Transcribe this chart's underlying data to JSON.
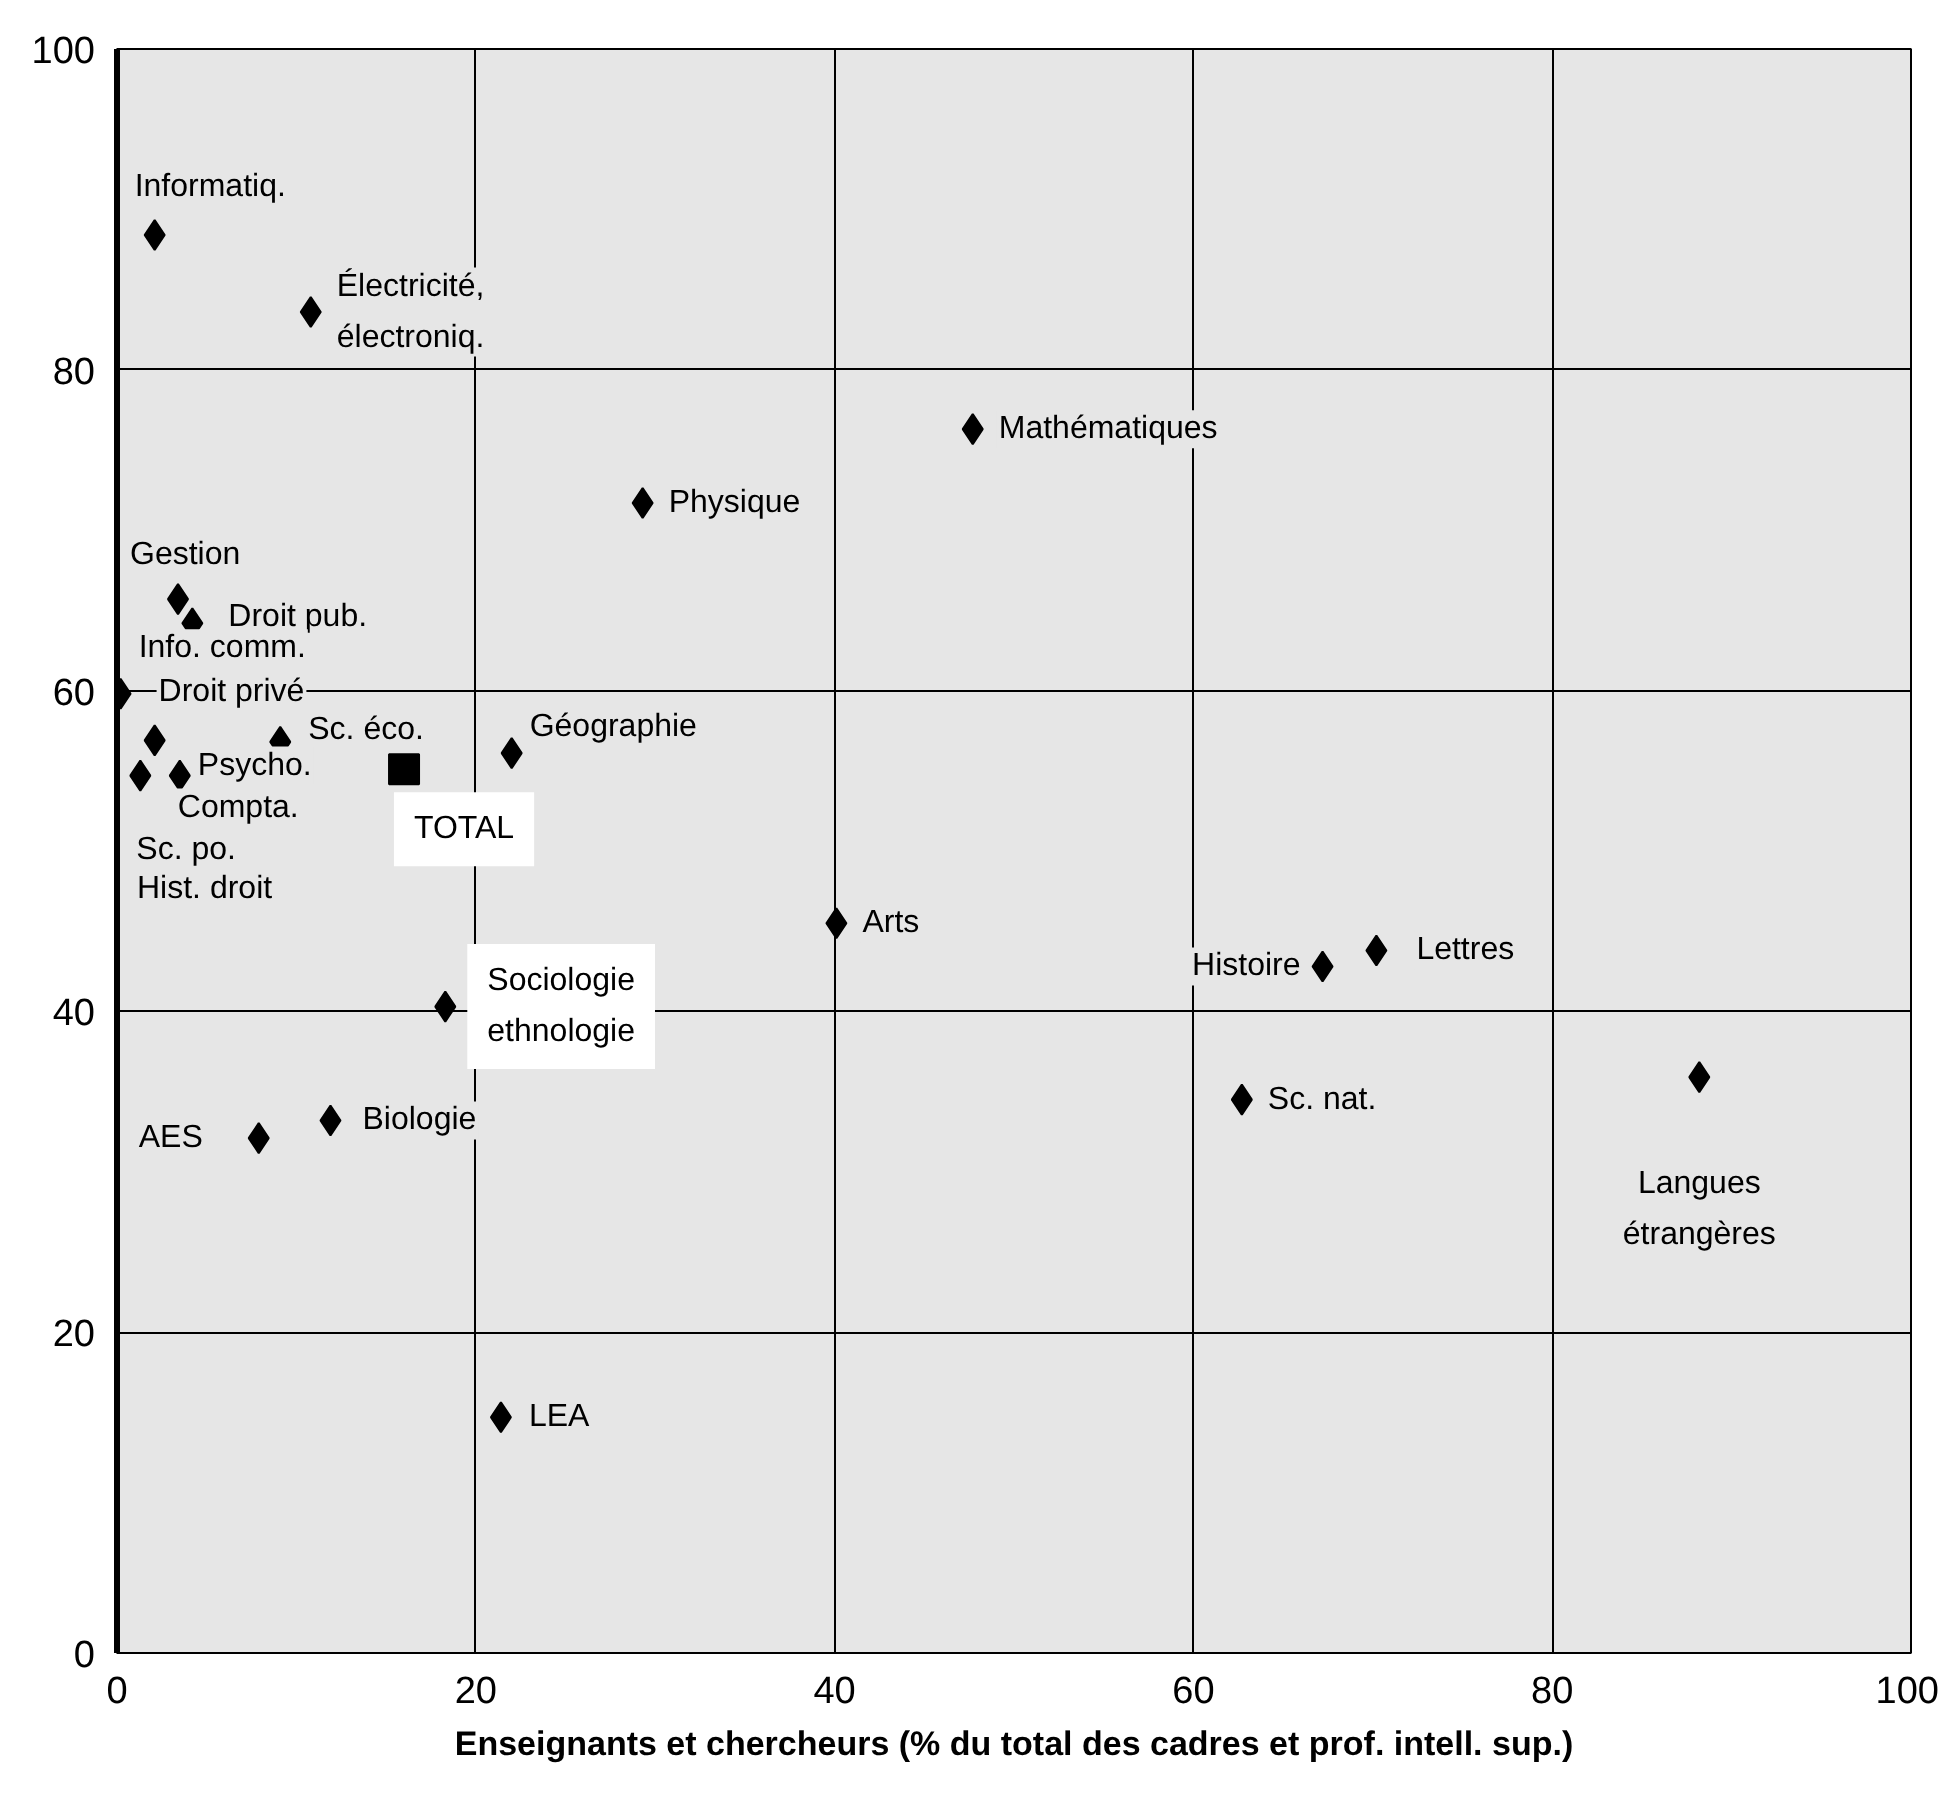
{
  "chart_data": {
    "type": "scatter",
    "xlabel": "Enseignants et chercheurs (% du total des cadres et prof. intell. sup.)",
    "xlim": [
      0,
      100
    ],
    "ylim": [
      0,
      100
    ],
    "xticks": [
      0,
      20,
      40,
      60,
      80,
      100
    ],
    "yticks": [
      0,
      20,
      40,
      60,
      80,
      100
    ],
    "grid": true,
    "series": [
      {
        "color": "#000000",
        "marker": "diamond",
        "x": [
          2.1,
          10.8,
          47.7,
          29.3,
          3.4,
          4.2,
          2.1,
          0.2,
          9.1,
          22.0,
          3.5,
          1.3,
          18.3,
          11.9,
          7.9,
          40.1,
          67.2,
          70.2,
          62.7,
          88.2,
          21.4
        ],
        "values": [
          88.4,
          83.6,
          76.3,
          71.7,
          65.7,
          64.2,
          56.9,
          59.8,
          56.8,
          56.1,
          54.7,
          54.7,
          40.3,
          33.2,
          32.1,
          45.5,
          42.8,
          43.8,
          34.5,
          35.9,
          14.7
        ]
      },
      {
        "color": "#000000",
        "marker": "square",
        "x": [
          16.0
        ],
        "values": [
          55.1
        ]
      }
    ],
    "annotations": [
      {
        "text": "Informatiq.",
        "x": 2.1,
        "y": 88.4
      },
      {
        "text": "Électricité,\nélectroniq.",
        "x": 10.8,
        "y": 83.6
      },
      {
        "text": "Mathématiques",
        "x": 47.7,
        "y": 76.3
      },
      {
        "text": "Physique",
        "x": 29.3,
        "y": 71.7
      },
      {
        "text": "Gestion",
        "x": 3.4,
        "y": 65.7
      },
      {
        "text": "Droit pub.",
        "x": 4.2,
        "y": 64.2
      },
      {
        "text": "Info. comm.",
        "x": 2.1,
        "y": 56.9
      },
      {
        "text": "Droit privé",
        "x": 0.2,
        "y": 59.8
      },
      {
        "text": "Sc. éco.",
        "x": 9.1,
        "y": 56.8
      },
      {
        "text": "Géographie",
        "x": 22.0,
        "y": 56.1
      },
      {
        "text": "Psycho.",
        "x": 3.5,
        "y": 54.7
      },
      {
        "text": "Compta.",
        "x": 3.5,
        "y": 54.7
      },
      {
        "text": "Sc. po.",
        "x": 1.3,
        "y": 54.7
      },
      "Hist. droit",
      {
        "text": "TOTAL",
        "x": 16.0,
        "y": 55.1
      },
      {
        "text": "Sociologie\nethnologie",
        "x": 18.3,
        "y": 40.3
      },
      {
        "text": "Biologie",
        "x": 11.9,
        "y": 33.2
      },
      {
        "text": "AES",
        "x": 7.9,
        "y": 32.1
      },
      {
        "text": "Arts",
        "x": 40.1,
        "y": 45.5
      },
      {
        "text": "Histoire",
        "x": 67.2,
        "y": 42.8
      },
      {
        "text": "Lettres",
        "x": 70.2,
        "y": 43.8
      },
      {
        "text": "Sc. nat.",
        "x": 62.7,
        "y": 34.5
      },
      {
        "text": "Langues\nétrangères",
        "x": 88.2,
        "y": 35.9
      },
      {
        "text": "LEA",
        "x": 21.4,
        "y": 14.7
      }
    ]
  }
}
